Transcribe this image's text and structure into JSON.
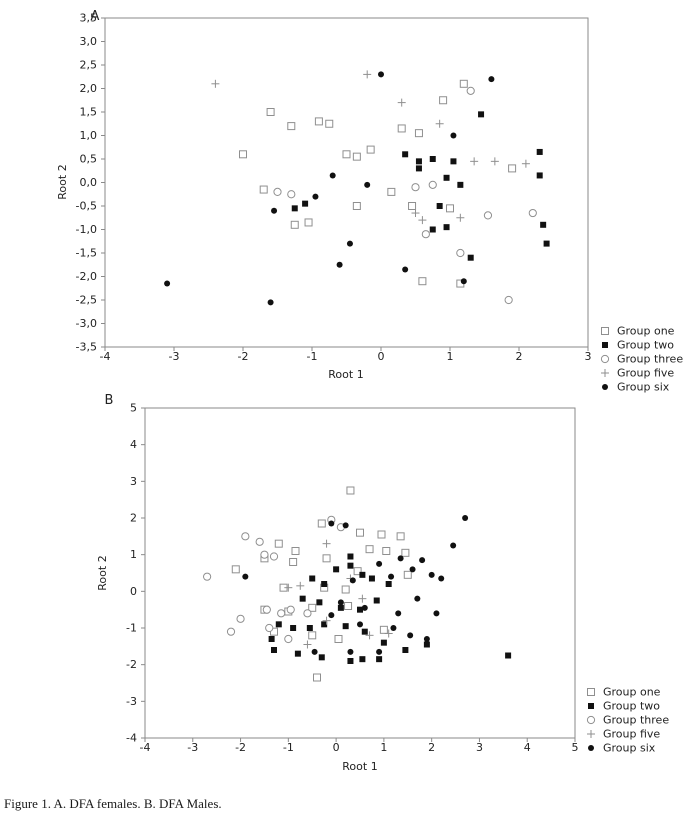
{
  "page": {
    "caption": "Figure 1. A. DFA females. B. DFA Males."
  },
  "colors": {
    "marker_dark": "#111111",
    "marker_gray": "#8f8f8f",
    "axis": "#8a8a8a",
    "text": "#222222"
  },
  "chart_data": [
    {
      "id": "A",
      "type": "scatter",
      "panel_label": "A",
      "xlabel": "Root 1",
      "ylabel": "Root 2",
      "xlim": [
        -4,
        3
      ],
      "ylim": [
        -3.5,
        3.5
      ],
      "grid": false,
      "legend_position": "right-bottom",
      "xticks": [
        -4,
        -3,
        -2,
        -1,
        0,
        1,
        2,
        3
      ],
      "xtick_labels": [
        "-4",
        "-3",
        "-2",
        "-1",
        "0",
        "1",
        "2",
        "3"
      ],
      "yticks": [
        3.5,
        3.0,
        2.5,
        2.0,
        1.5,
        1.0,
        0.5,
        0.0,
        -0.5,
        -1.0,
        -1.5,
        -2.0,
        -2.5,
        -3.0,
        -3.5
      ],
      "ytick_labels": [
        "3,5",
        "3,0",
        "2,5",
        "2,0",
        "1,5",
        "1,0",
        "0,5",
        "0,0",
        "-0,5",
        "-1,0",
        "-1,5",
        "-2,0",
        "-2,5",
        "-3,0",
        "-3,5"
      ],
      "series": [
        {
          "name": "Group one",
          "marker": "open-square",
          "points": [
            [
              -2.0,
              0.6
            ],
            [
              -1.6,
              1.5
            ],
            [
              -1.3,
              1.2
            ],
            [
              -0.9,
              1.3
            ],
            [
              -0.75,
              1.25
            ],
            [
              -0.5,
              0.6
            ],
            [
              -0.35,
              0.55
            ],
            [
              -0.15,
              0.7
            ],
            [
              0.3,
              1.15
            ],
            [
              0.55,
              1.05
            ],
            [
              0.9,
              1.75
            ],
            [
              1.2,
              2.1
            ],
            [
              -1.7,
              -0.15
            ],
            [
              -1.25,
              -0.9
            ],
            [
              -1.05,
              -0.85
            ],
            [
              -0.35,
              -0.5
            ],
            [
              0.15,
              -0.2
            ],
            [
              0.45,
              -0.5
            ],
            [
              1.0,
              -0.55
            ],
            [
              1.9,
              0.3
            ],
            [
              0.6,
              -2.1
            ],
            [
              1.15,
              -2.15
            ]
          ]
        },
        {
          "name": "Group two",
          "marker": "filled-square",
          "points": [
            [
              0.35,
              0.6
            ],
            [
              0.55,
              0.45
            ],
            [
              0.75,
              0.5
            ],
            [
              0.95,
              0.1
            ],
            [
              1.15,
              -0.05
            ],
            [
              1.45,
              1.45
            ],
            [
              2.3,
              0.65
            ],
            [
              2.3,
              0.15
            ],
            [
              2.35,
              -0.9
            ],
            [
              2.4,
              -1.3
            ],
            [
              0.85,
              -0.5
            ],
            [
              0.95,
              -0.95
            ],
            [
              0.75,
              -1.0
            ],
            [
              -1.1,
              -0.45
            ],
            [
              -1.25,
              -0.55
            ],
            [
              1.3,
              -1.6
            ],
            [
              0.55,
              0.3
            ],
            [
              1.05,
              0.45
            ]
          ]
        },
        {
          "name": "Group three",
          "marker": "open-circle",
          "points": [
            [
              -1.5,
              -0.2
            ],
            [
              -1.3,
              -0.25
            ],
            [
              0.5,
              -0.1
            ],
            [
              0.75,
              -0.05
            ],
            [
              1.3,
              1.95
            ],
            [
              1.15,
              -1.5
            ],
            [
              0.65,
              -1.1
            ],
            [
              1.55,
              -0.7
            ],
            [
              1.85,
              -2.5
            ],
            [
              2.2,
              -0.65
            ]
          ]
        },
        {
          "name": "Group five",
          "marker": "plus",
          "points": [
            [
              -2.4,
              2.1
            ],
            [
              -0.2,
              2.3
            ],
            [
              0.3,
              1.7
            ],
            [
              0.85,
              1.25
            ],
            [
              1.35,
              0.45
            ],
            [
              1.65,
              0.45
            ],
            [
              2.1,
              0.4
            ],
            [
              0.5,
              -0.65
            ],
            [
              0.6,
              -0.8
            ],
            [
              1.15,
              -0.75
            ]
          ]
        },
        {
          "name": "Group six",
          "marker": "filled-circle",
          "points": [
            [
              -3.1,
              -2.15
            ],
            [
              -1.6,
              -2.55
            ],
            [
              -1.55,
              -0.6
            ],
            [
              -0.95,
              -0.3
            ],
            [
              -0.6,
              -1.75
            ],
            [
              -0.2,
              -0.05
            ],
            [
              0.0,
              2.3
            ],
            [
              1.05,
              1.0
            ],
            [
              -0.45,
              -1.3
            ],
            [
              0.35,
              -1.85
            ],
            [
              1.2,
              -2.1
            ],
            [
              1.6,
              2.2
            ],
            [
              -0.7,
              0.15
            ]
          ]
        }
      ]
    },
    {
      "id": "B",
      "type": "scatter",
      "panel_label": "B",
      "xlabel": "Root 1",
      "ylabel": "Root 2",
      "xlim": [
        -4,
        5
      ],
      "ylim": [
        -4,
        5
      ],
      "grid": false,
      "legend_position": "right-bottom",
      "xticks": [
        -4,
        -3,
        -2,
        -1,
        0,
        1,
        2,
        3,
        4,
        5
      ],
      "xtick_labels": [
        "-4",
        "-3",
        "-2",
        "-1",
        "0",
        "1",
        "2",
        "3",
        "4",
        "5"
      ],
      "yticks": [
        5,
        4,
        3,
        2,
        1,
        0,
        -1,
        -2,
        -3,
        -4
      ],
      "ytick_labels": [
        "5",
        "4",
        "3",
        "2",
        "1",
        "0",
        "-1",
        "-2",
        "-3",
        "-4"
      ],
      "series": [
        {
          "name": "Group one",
          "marker": "open-square",
          "points": [
            [
              0.3,
              2.75
            ],
            [
              -0.3,
              1.85
            ],
            [
              0.5,
              1.6
            ],
            [
              0.95,
              1.55
            ],
            [
              1.35,
              1.5
            ],
            [
              -1.2,
              1.3
            ],
            [
              -0.85,
              1.1
            ],
            [
              0.7,
              1.15
            ],
            [
              1.05,
              1.1
            ],
            [
              1.45,
              1.05
            ],
            [
              -1.5,
              0.9
            ],
            [
              -0.9,
              0.8
            ],
            [
              -0.2,
              0.9
            ],
            [
              0.45,
              0.55
            ],
            [
              1.5,
              0.45
            ],
            [
              -2.1,
              0.6
            ],
            [
              -1.1,
              0.1
            ],
            [
              -0.25,
              0.1
            ],
            [
              0.2,
              0.05
            ],
            [
              -1.5,
              -0.5
            ],
            [
              -1.0,
              -0.55
            ],
            [
              -0.5,
              -0.45
            ],
            [
              0.25,
              -0.4
            ],
            [
              -1.3,
              -1.1
            ],
            [
              -0.5,
              -1.2
            ],
            [
              0.05,
              -1.3
            ],
            [
              1.0,
              -1.05
            ],
            [
              -0.4,
              -2.35
            ]
          ]
        },
        {
          "name": "Group two",
          "marker": "filled-square",
          "points": [
            [
              -0.5,
              0.35
            ],
            [
              -0.25,
              0.2
            ],
            [
              0.0,
              0.6
            ],
            [
              0.3,
              0.7
            ],
            [
              0.55,
              0.45
            ],
            [
              0.75,
              0.35
            ],
            [
              1.1,
              0.2
            ],
            [
              -0.7,
              -0.2
            ],
            [
              -0.35,
              -0.3
            ],
            [
              0.1,
              -0.45
            ],
            [
              0.5,
              -0.5
            ],
            [
              0.85,
              -0.25
            ],
            [
              -1.2,
              -0.9
            ],
            [
              -0.9,
              -1.0
            ],
            [
              -0.55,
              -1.0
            ],
            [
              -0.25,
              -0.9
            ],
            [
              0.2,
              -0.95
            ],
            [
              0.6,
              -1.1
            ],
            [
              1.0,
              -1.4
            ],
            [
              -1.3,
              -1.6
            ],
            [
              -0.8,
              -1.7
            ],
            [
              -0.3,
              -1.8
            ],
            [
              0.3,
              -1.9
            ],
            [
              0.55,
              -1.85
            ],
            [
              0.9,
              -1.85
            ],
            [
              1.45,
              -1.6
            ],
            [
              1.9,
              -1.45
            ],
            [
              3.6,
              -1.75
            ],
            [
              -1.35,
              -1.3
            ],
            [
              0.3,
              0.95
            ]
          ]
        },
        {
          "name": "Group three",
          "marker": "open-circle",
          "points": [
            [
              -2.7,
              0.4
            ],
            [
              -1.9,
              1.5
            ],
            [
              -1.6,
              1.35
            ],
            [
              -1.5,
              1.0
            ],
            [
              -1.3,
              0.95
            ],
            [
              -0.1,
              1.95
            ],
            [
              -2.0,
              -0.75
            ],
            [
              -1.45,
              -0.5
            ],
            [
              -1.15,
              -0.6
            ],
            [
              -0.95,
              -0.5
            ],
            [
              -1.4,
              -1.0
            ],
            [
              -1.0,
              -1.3
            ],
            [
              -0.6,
              -0.6
            ],
            [
              -2.2,
              -1.1
            ],
            [
              0.1,
              1.75
            ]
          ]
        },
        {
          "name": "Group five",
          "marker": "plus",
          "points": [
            [
              -0.2,
              1.3
            ],
            [
              -1.0,
              0.1
            ],
            [
              -0.75,
              0.15
            ],
            [
              0.3,
              0.35
            ],
            [
              0.55,
              -0.2
            ],
            [
              -0.2,
              -0.8
            ],
            [
              0.7,
              -1.2
            ],
            [
              1.1,
              -1.15
            ],
            [
              -0.6,
              -1.45
            ]
          ]
        },
        {
          "name": "Group six",
          "marker": "filled-circle",
          "points": [
            [
              -0.1,
              1.85
            ],
            [
              0.2,
              1.8
            ],
            [
              2.7,
              2.0
            ],
            [
              2.45,
              1.25
            ],
            [
              -1.9,
              0.4
            ],
            [
              1.8,
              0.85
            ],
            [
              1.6,
              0.6
            ],
            [
              2.0,
              0.45
            ],
            [
              2.2,
              0.35
            ],
            [
              0.9,
              0.75
            ],
            [
              1.15,
              0.4
            ],
            [
              0.35,
              0.3
            ],
            [
              1.7,
              -0.2
            ],
            [
              2.1,
              -0.6
            ],
            [
              0.1,
              -0.3
            ],
            [
              0.6,
              -0.45
            ],
            [
              1.3,
              -0.6
            ],
            [
              -0.1,
              -0.65
            ],
            [
              0.5,
              -0.9
            ],
            [
              1.2,
              -1.0
            ],
            [
              1.55,
              -1.2
            ],
            [
              1.9,
              -1.3
            ],
            [
              0.3,
              -1.65
            ],
            [
              0.9,
              -1.65
            ],
            [
              -0.45,
              -1.65
            ],
            [
              1.35,
              0.9
            ]
          ]
        }
      ]
    }
  ]
}
